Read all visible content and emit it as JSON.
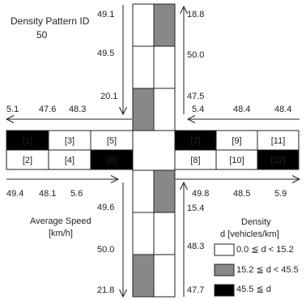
{
  "title_line1": "Density Pattern ID",
  "title_line2": "50",
  "speed_title_line1": "Average Speed",
  "speed_title_line2": "[km/h]",
  "legend": {
    "title_line1": "Density",
    "title_line2": "d [vehicles/km]",
    "items": [
      {
        "label": "0.0 ≦ d < 15.2",
        "color": "#ffffff"
      },
      {
        "label": "15.2 ≦ d < 45.5",
        "color": "#888888"
      },
      {
        "label": "45.5 ≦ d",
        "color": "#000000"
      }
    ]
  },
  "colors": {
    "white": "#ffffff",
    "gray": "#888888",
    "black": "#000000"
  },
  "north_south_road": {
    "north_left_column": [
      "white",
      "white",
      "gray"
    ],
    "north_right_column": [
      "gray",
      "white",
      "white"
    ],
    "south_left_column": [
      "white",
      "white",
      "gray"
    ],
    "south_right_column": [
      "gray",
      "white",
      "white"
    ]
  },
  "west_east_road": {
    "west_top_row": [
      {
        "label": "[1]",
        "color": "black"
      },
      {
        "label": "[3]",
        "color": "white"
      },
      {
        "label": "[5]",
        "color": "white"
      }
    ],
    "west_bottom_row": [
      {
        "label": "[2]",
        "color": "white"
      },
      {
        "label": "[4]",
        "color": "white"
      },
      {
        "label": "[6]",
        "color": "black"
      }
    ],
    "east_top_row": [
      {
        "label": "[7]",
        "color": "black"
      },
      {
        "label": "[9]",
        "color": "white"
      },
      {
        "label": "[11]",
        "color": "white"
      }
    ],
    "east_bottom_row": [
      {
        "label": "[8]",
        "color": "white"
      },
      {
        "label": "[10]",
        "color": "white"
      },
      {
        "label": "[12]",
        "color": "black"
      }
    ]
  },
  "speeds": {
    "north_down": [
      "49.1",
      "49.5",
      "20.1"
    ],
    "north_up": [
      "18.8",
      "50.0",
      "47.5"
    ],
    "south_down": [
      "49.6",
      "50.0",
      "21.8"
    ],
    "south_up": [
      "15.4",
      "48.3",
      "47.7"
    ],
    "west_left": [
      "5.1",
      "47.6",
      "48.3"
    ],
    "west_right": [
      "49.4",
      "48.1",
      "5.6"
    ],
    "east_left": [
      "5.4",
      "48.4",
      "48.4"
    ],
    "east_right": [
      "49.8",
      "48.5",
      "5.9"
    ]
  }
}
